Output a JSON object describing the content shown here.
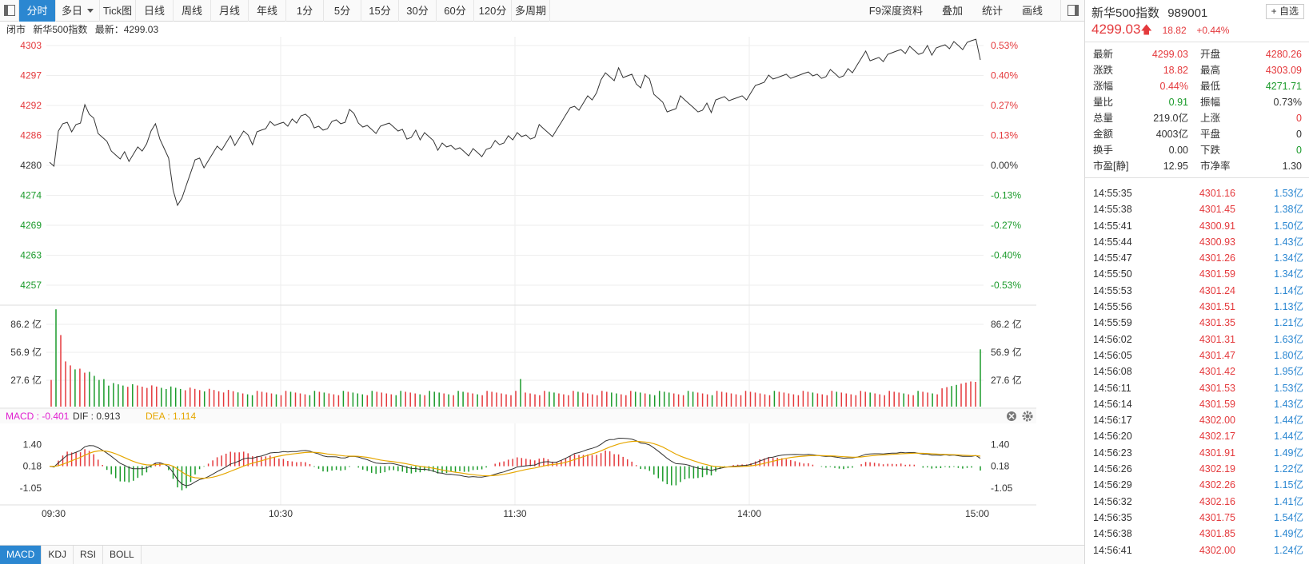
{
  "toolbar": {
    "tabs": [
      {
        "label": "分时",
        "w": 46,
        "active": true
      },
      {
        "label": "多日",
        "w": 55,
        "dropdown": true
      },
      {
        "label": "Tick图",
        "w": 45
      },
      {
        "label": "日线",
        "w": 47
      },
      {
        "label": "周线",
        "w": 47
      },
      {
        "label": "月线",
        "w": 47
      },
      {
        "label": "年线",
        "w": 47
      },
      {
        "label": "1分",
        "w": 47
      },
      {
        "label": "5分",
        "w": 47
      },
      {
        "label": "15分",
        "w": 47
      },
      {
        "label": "30分",
        "w": 47
      },
      {
        "label": "60分",
        "w": 47
      },
      {
        "label": "120分",
        "w": 47
      },
      {
        "label": "多周期",
        "w": 48
      }
    ],
    "right_tools": [
      "F9深度资料",
      "叠加",
      "统计",
      "画线"
    ]
  },
  "infobar": {
    "status": "闭市",
    "name": "新华500指数",
    "latest_label": "最新：",
    "latest_value": "4299.03"
  },
  "indicator_tabs": [
    {
      "label": "MACD",
      "active": true
    },
    {
      "label": "KDJ"
    },
    {
      "label": "RSI"
    },
    {
      "label": "BOLL"
    }
  ],
  "right_panel": {
    "name": "新华500指数",
    "code": "989001",
    "fav_label": "+ 自选",
    "price": "4299.03",
    "change": "18.82",
    "change_pct": "+0.44%",
    "stats": [
      {
        "l1": "最新",
        "v1": "4299.03",
        "c1": "red",
        "l2": "开盘",
        "v2": "4280.26",
        "c2": "red"
      },
      {
        "l1": "涨跌",
        "v1": "18.82",
        "c1": "red",
        "l2": "最高",
        "v2": "4303.09",
        "c2": "red"
      },
      {
        "l1": "涨幅",
        "v1": "0.44%",
        "c1": "red",
        "l2": "最低",
        "v2": "4271.71",
        "c2": "green"
      },
      {
        "l1": "量比",
        "v1": "0.91",
        "c1": "green",
        "l2": "振幅",
        "v2": "0.73%",
        "c2": "black"
      },
      {
        "l1": "总量",
        "v1": "219.0亿",
        "c1": "black",
        "l2": "上涨",
        "v2": "0",
        "c2": "red"
      },
      {
        "l1": "金额",
        "v1": "4003亿",
        "c1": "black",
        "l2": "平盘",
        "v2": "0",
        "c2": "black"
      },
      {
        "l1": "换手",
        "v1": "0.00",
        "c1": "black",
        "l2": "下跌",
        "v2": "0",
        "c2": "green"
      },
      {
        "l1": "市盈[静]",
        "v1": "12.95",
        "c1": "black",
        "l2": "市净率",
        "v2": "1.30",
        "c2": "black"
      }
    ],
    "ticks": [
      {
        "t": "14:55:35",
        "p": "4301.16",
        "v": "1.53亿"
      },
      {
        "t": "14:55:38",
        "p": "4301.45",
        "v": "1.38亿"
      },
      {
        "t": "14:55:41",
        "p": "4300.91",
        "v": "1.50亿"
      },
      {
        "t": "14:55:44",
        "p": "4300.93",
        "v": "1.43亿"
      },
      {
        "t": "14:55:47",
        "p": "4301.26",
        "v": "1.34亿"
      },
      {
        "t": "14:55:50",
        "p": "4301.59",
        "v": "1.34亿"
      },
      {
        "t": "14:55:53",
        "p": "4301.24",
        "v": "1.14亿"
      },
      {
        "t": "14:55:56",
        "p": "4301.51",
        "v": "1.13亿"
      },
      {
        "t": "14:55:59",
        "p": "4301.35",
        "v": "1.21亿"
      },
      {
        "t": "14:56:02",
        "p": "4301.31",
        "v": "1.63亿"
      },
      {
        "t": "14:56:05",
        "p": "4301.47",
        "v": "1.80亿"
      },
      {
        "t": "14:56:08",
        "p": "4301.42",
        "v": "1.95亿"
      },
      {
        "t": "14:56:11",
        "p": "4301.53",
        "v": "1.53亿"
      },
      {
        "t": "14:56:14",
        "p": "4301.59",
        "v": "1.43亿"
      },
      {
        "t": "14:56:17",
        "p": "4302.00",
        "v": "1.44亿"
      },
      {
        "t": "14:56:20",
        "p": "4302.17",
        "v": "1.44亿"
      },
      {
        "t": "14:56:23",
        "p": "4301.91",
        "v": "1.49亿"
      },
      {
        "t": "14:56:26",
        "p": "4302.19",
        "v": "1.22亿"
      },
      {
        "t": "14:56:29",
        "p": "4302.26",
        "v": "1.15亿"
      },
      {
        "t": "14:56:32",
        "p": "4302.16",
        "v": "1.41亿"
      },
      {
        "t": "14:56:35",
        "p": "4301.75",
        "v": "1.54亿"
      },
      {
        "t": "14:56:38",
        "p": "4301.85",
        "v": "1.49亿"
      },
      {
        "t": "14:56:41",
        "p": "4302.00",
        "v": "1.24亿"
      }
    ]
  },
  "chart_data": {
    "type": "line",
    "prev_close": 4280.21,
    "price": {
      "y_ticks": [
        {
          "v": 4303,
          "pct": "0.53%"
        },
        {
          "v": 4297,
          "pct": "0.40%"
        },
        {
          "v": 4292,
          "pct": "0.27%"
        },
        {
          "v": 4286,
          "pct": "0.13%"
        },
        {
          "v": 4280,
          "pct": "0.00%"
        },
        {
          "v": 4274,
          "pct": "-0.13%"
        },
        {
          "v": 4269,
          "pct": "-0.27%"
        },
        {
          "v": 4263,
          "pct": "-0.40%"
        },
        {
          "v": 4257,
          "pct": "-0.53%"
        }
      ],
      "ylim": [
        4257,
        4303
      ],
      "series": [
        4281,
        4280,
        4286,
        4287,
        4288,
        4286,
        4287,
        4288,
        4291,
        4289,
        4288,
        4286,
        4285,
        4284,
        4283,
        4282,
        4281,
        4282,
        4281,
        4282,
        4283,
        4283,
        4284,
        4286,
        4287,
        4285,
        4283,
        4281,
        4276,
        4273,
        4274,
        4276,
        4279,
        4281,
        4281,
        4280,
        4281,
        4282,
        4283,
        4283,
        4284,
        4285,
        4284,
        4285,
        4286,
        4285,
        4284,
        4286,
        4286,
        4287,
        4288,
        4287,
        4287,
        4288,
        4287,
        4288,
        4288,
        4289,
        4289,
        4288,
        4287,
        4287,
        4286,
        4287,
        4288,
        4288,
        4287,
        4288,
        4290,
        4289,
        4288,
        4287,
        4287,
        4286,
        4286,
        4287,
        4287,
        4288,
        4287,
        4286,
        4286,
        4285,
        4285,
        4286,
        4285,
        4286,
        4285,
        4284,
        4283,
        4284,
        4283,
        4284,
        4283,
        4283,
        4282,
        4282,
        4283,
        4282,
        4282,
        4283,
        4283,
        4284,
        4284,
        4284,
        4285,
        4285,
        4286,
        4285,
        4285,
        4285,
        4285,
        4287,
        4287,
        4286,
        4285,
        4286,
        4288,
        4289,
        4290,
        4291,
        4290,
        4291,
        4292,
        4292,
        4293,
        4295,
        4297,
        4296,
        4295,
        4297,
        4296,
        4296,
        4296,
        4295,
        4294,
        4296,
        4295,
        4293,
        4292,
        4291,
        4290,
        4290,
        4290,
        4292,
        4292,
        4291,
        4290,
        4290,
        4290,
        4291,
        4289,
        4292,
        4292,
        4292,
        4292,
        4292,
        4292,
        4292,
        4292,
        4293,
        4294,
        4295,
        4295,
        4296,
        4295,
        4296,
        4296,
        4296,
        4296,
        4296,
        4296,
        4296,
        4297,
        4296,
        4296,
        4296,
        4296,
        4297,
        4296,
        4296,
        4296,
        4297,
        4297,
        4298,
        4299,
        4300,
        4299,
        4299,
        4299,
        4299,
        4300,
        4300,
        4300,
        4301,
        4300,
        4301,
        4301,
        4300,
        4300,
        4301,
        4300,
        4301,
        4301,
        4302,
        4301,
        4302,
        4301,
        4301,
        4302,
        4302,
        4303,
        4299
      ]
    },
    "volume": {
      "y_ticks": [
        "86.2 亿",
        "56.9 亿",
        "27.6 亿"
      ],
      "tick_values": [
        86.2,
        56.9,
        27.6
      ],
      "ymax": 103
    },
    "macd": {
      "label": "MACD : -0.401",
      "dif_label": "DIF : 0.913",
      "dea_label": "DEA : 1.114",
      "y_ticks": [
        "1.40",
        "0.18",
        "-1.05"
      ],
      "tick_values": [
        1.4,
        0.18,
        -1.05
      ],
      "ylim": [
        -2.0,
        2.5
      ]
    },
    "x_labels": [
      "09:30",
      "10:30",
      "11:30",
      "14:00",
      "15:00"
    ],
    "colors": {
      "up": "#e4393c",
      "down": "#1a9a2a",
      "line": "#333333",
      "dea": "#e6a700",
      "macd_label": "#e020d0",
      "grid": "#eeeeee"
    }
  }
}
